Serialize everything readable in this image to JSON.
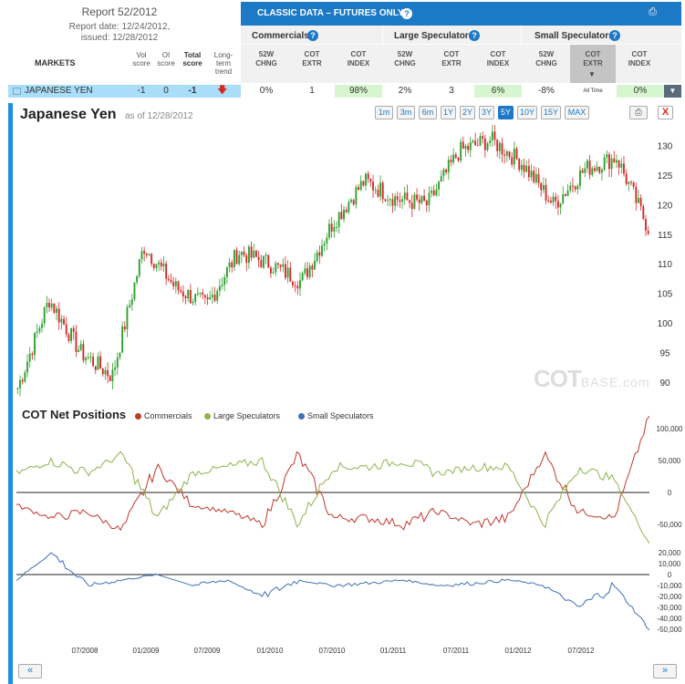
{
  "report": {
    "title": "Report 52/2012",
    "date": "Report date: 12/24/2012,",
    "issued": "issued: 12/28/2012"
  },
  "table": {
    "markets_label": "MARKETS",
    "vol_score": "Vol score",
    "oi_score": "OI score",
    "total_score": "Total score",
    "long_term_trend": "Long-term trend",
    "classic_title": "CLASSIC DATA – FUTURES ONLY",
    "groups": [
      {
        "name": "Commercials"
      },
      {
        "name": "Large Speculators"
      },
      {
        "name": "Small Speculators"
      }
    ],
    "col_52w": "52W CHNG",
    "col_extr": "COT EXTR",
    "col_index": "COT INDEX",
    "row": {
      "market": "JAPANESE YEN",
      "vol": "-1",
      "oi": "0",
      "total": "-1",
      "comm_52w": "0%",
      "comm_extr": "1",
      "comm_index": "98%",
      "large_52w": "2%",
      "large_extr": "3",
      "large_index": "6%",
      "small_52w": "-8%",
      "small_extr": "All Time",
      "small_index": "0%"
    }
  },
  "chart": {
    "title": "Japanese Yen",
    "as_of": "as of 12/28/2012",
    "ranges": [
      "1m",
      "3m",
      "6m",
      "1Y",
      "2Y",
      "3Y",
      "5Y",
      "10Y",
      "15Y",
      "MAX"
    ],
    "active_range": "5Y",
    "close_label": "X",
    "watermark_main": "COT",
    "watermark_sub": "BASE.com",
    "cot_title": "COT Net Positions",
    "legend": [
      "Commercials",
      "Large Speculators",
      "Small Speculators"
    ],
    "x_ticks": [
      "07/2008",
      "01/2009",
      "07/2009",
      "01/2010",
      "07/2010",
      "01/2011",
      "07/2011",
      "01/2012",
      "07/2012"
    ],
    "nav_prev": "«",
    "nav_next": "»"
  },
  "colors": {
    "accent": "#1c79c6",
    "up": "#2ca02c",
    "down": "#d62728",
    "commercials": "#c0392b",
    "large_speculators": "#8db34a",
    "small_speculators": "#3f6fb5"
  },
  "chart_data": [
    {
      "type": "line",
      "title": "Japanese Yen",
      "x": [
        "2008-01",
        "2008-04",
        "2008-07",
        "2008-10",
        "2009-01",
        "2009-04",
        "2009-07",
        "2009-10",
        "2010-01",
        "2010-04",
        "2010-07",
        "2010-10",
        "2011-01",
        "2011-04",
        "2011-07",
        "2011-10",
        "2012-01",
        "2012-04",
        "2012-07",
        "2012-10",
        "2012-12"
      ],
      "series": [
        {
          "values": [
            89,
            104,
            95,
            91,
            113,
            106,
            103,
            112,
            110,
            107,
            117,
            124,
            121,
            120,
            129,
            131,
            127,
            120,
            126,
            128,
            116
          ]
        }
      ],
      "yticks": [
        90,
        95,
        100,
        105,
        110,
        115,
        120,
        125,
        130
      ],
      "ylim": [
        88,
        133
      ]
    },
    {
      "type": "line",
      "title": "COT Net Positions",
      "x_ticks": [
        "07/2008",
        "01/2009",
        "07/2009",
        "01/2010",
        "07/2010",
        "01/2011",
        "07/2011",
        "01/2012",
        "07/2012"
      ],
      "series": [
        {
          "name": "Commercials",
          "values": [
            -20000,
            -40000,
            -30000,
            -60000,
            40000,
            -20000,
            -30000,
            -50000,
            60000,
            -40000,
            -40000,
            -50000,
            -30000,
            -50000,
            -40000,
            60000,
            -30000,
            -40000,
            120000
          ]
        },
        {
          "name": "Large Speculators",
          "values": [
            30000,
            50000,
            30000,
            60000,
            -40000,
            30000,
            40000,
            50000,
            -50000,
            40000,
            40000,
            50000,
            30000,
            40000,
            40000,
            -50000,
            40000,
            20000,
            -80000
          ]
        },
        {
          "name": "Small Speculators",
          "values": [
            -5000,
            20000,
            -10000,
            -5000,
            0,
            -10000,
            -5000,
            -20000,
            -5000,
            -10000,
            -8000,
            -5000,
            -10000,
            -8000,
            -5000,
            -10000,
            -30000,
            -10000,
            -50000
          ]
        }
      ],
      "yticks_top": [
        "100,000",
        "50,000",
        "0",
        "-50,000"
      ],
      "yticks_bottom": [
        "20,000",
        "10,000",
        "0",
        "-10,000",
        "-20,000",
        "-30,000",
        "-40,000",
        "-50,000"
      ]
    }
  ]
}
